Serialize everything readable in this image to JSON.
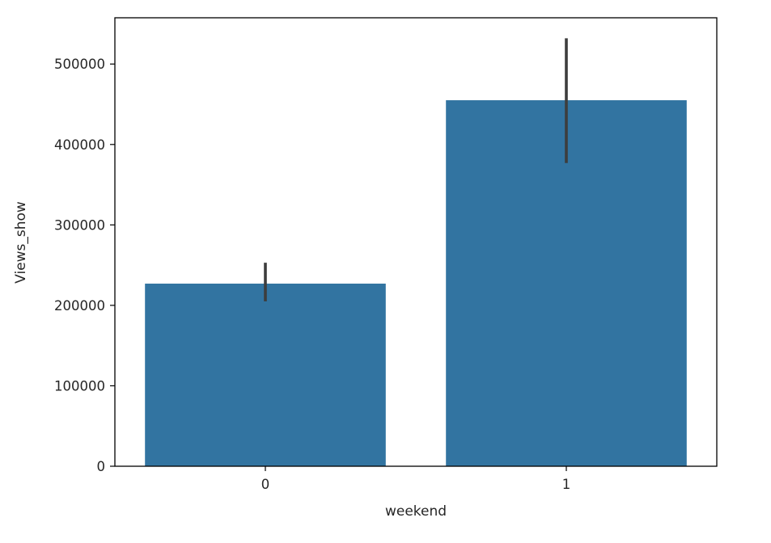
{
  "chart_data": {
    "type": "bar",
    "categories": [
      "0",
      "1"
    ],
    "values": [
      227000,
      455000
    ],
    "error_bars": [
      {
        "low": 205000,
        "high": 253000
      },
      {
        "low": 377000,
        "high": 532000
      }
    ],
    "xlabel": "weekend",
    "ylabel": "Views_show",
    "ylim": [
      0,
      557500
    ],
    "yticks": [
      0,
      100000,
      200000,
      300000,
      400000,
      500000
    ],
    "ytick_labels": [
      "0",
      "100000",
      "200000",
      "300000",
      "400000",
      "500000"
    ],
    "grid": false,
    "legend": "none",
    "colors": {
      "bar": "#3274a1",
      "error_bar": "#3d3d3d",
      "axes": "#000000",
      "text": "#262626"
    }
  }
}
